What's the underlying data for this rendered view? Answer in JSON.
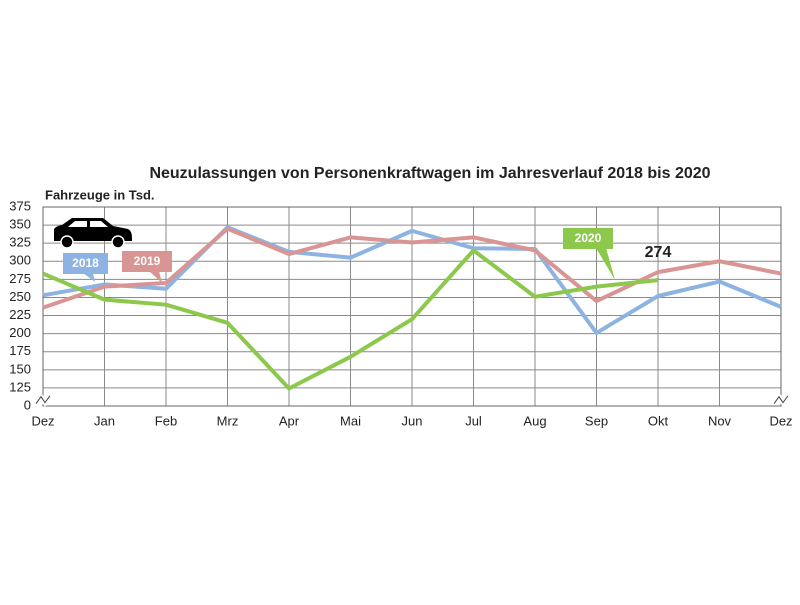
{
  "chart_data": {
    "type": "line",
    "title": "Neuzulassungen von Personenkraftwagen im Jahresverlauf 2018 bis 2020",
    "y_label": "Fahrzeuge in Tsd.",
    "categories": [
      "Dez",
      "Jan",
      "Feb",
      "Mrz",
      "Apr",
      "Mai",
      "Jun",
      "Jul",
      "Aug",
      "Sep",
      "Okt",
      "Nov",
      "Dez"
    ],
    "series": [
      {
        "name": "2018",
        "color": "#8db3e2",
        "values": [
          253,
          268,
          262,
          347,
          313,
          305,
          342,
          318,
          317,
          201,
          252,
          272,
          237
        ]
      },
      {
        "name": "2019",
        "color": "#d99594",
        "values": [
          236,
          265,
          270,
          345,
          310,
          333,
          326,
          333,
          315,
          245,
          285,
          300,
          283
        ]
      },
      {
        "name": "2020",
        "color": "#8cc84b",
        "values": [
          283,
          247,
          240,
          215,
          121,
          168,
          220,
          315,
          251,
          265,
          274,
          null,
          null
        ]
      }
    ],
    "annotation": 274,
    "ylim": [
      0,
      375
    ],
    "yticks": [
      0,
      125,
      150,
      175,
      200,
      225,
      250,
      275,
      300,
      325,
      350,
      375
    ],
    "broken_axis": true,
    "grid": true
  }
}
